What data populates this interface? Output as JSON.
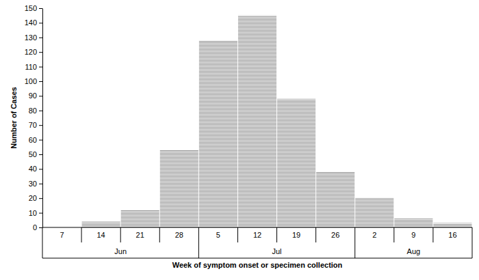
{
  "chart_data": {
    "type": "bar",
    "x_label": "Week of symptom onset or specimen collection",
    "y_label": "Number of Cases",
    "categories": [
      "7",
      "14",
      "21",
      "28",
      "5",
      "12",
      "19",
      "26",
      "2",
      "9",
      "16"
    ],
    "category_groups": [
      "Jun",
      "Jun",
      "Jun",
      "Jun",
      "Jul",
      "Jul",
      "Jul",
      "Jul",
      "Aug",
      "Aug",
      "Aug"
    ],
    "values": [
      0,
      4,
      12,
      53,
      128,
      145,
      88,
      38,
      20,
      6,
      3
    ],
    "color": "#8c8c8c",
    "ylim": [
      0,
      150
    ],
    "yticks": [
      0,
      10,
      20,
      30,
      40,
      50,
      60,
      70,
      80,
      90,
      100,
      110,
      120,
      130,
      140,
      150
    ],
    "grid": false
  }
}
